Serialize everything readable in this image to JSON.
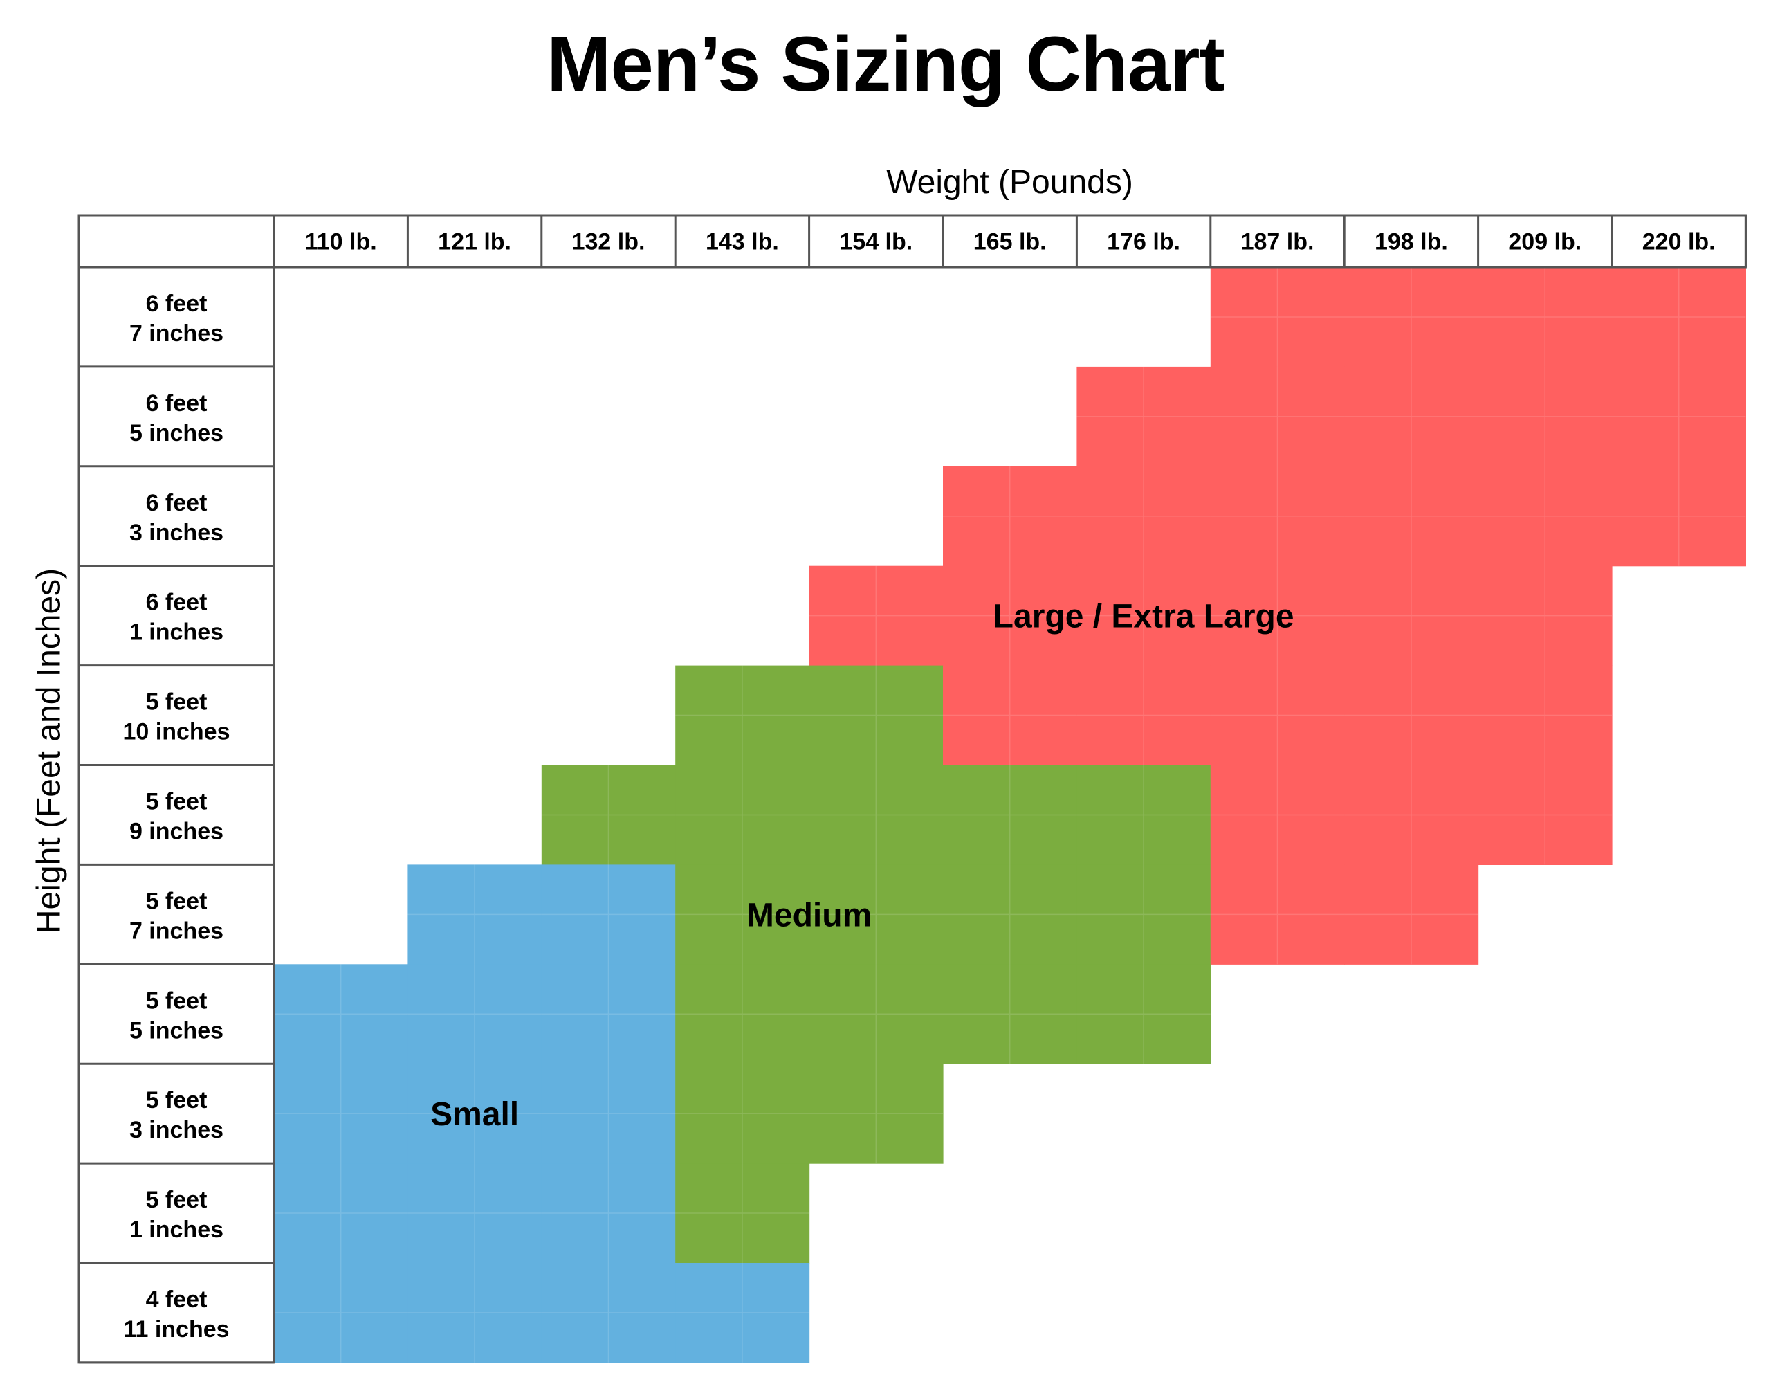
{
  "chart_data": {
    "type": "heatmap",
    "title": "Men’s Sizing Chart",
    "xlabel": "Weight (Pounds)",
    "ylabel": "Height (Feet and Inches)",
    "columns": [
      "110 lb.",
      "121 lb.",
      "132 lb.",
      "143 lb.",
      "154 lb.",
      "165 lb.",
      "176 lb.",
      "187 lb.",
      "198 lb.",
      "209 lb.",
      "220 lb."
    ],
    "rows": [
      {
        "feet": "6 feet",
        "inches": "7 inches"
      },
      {
        "feet": "6 feet",
        "inches": "5 inches"
      },
      {
        "feet": "6 feet",
        "inches": "3 inches"
      },
      {
        "feet": "6 feet",
        "inches": "1 inches"
      },
      {
        "feet": "5 feet",
        "inches": "10 inches"
      },
      {
        "feet": "5 feet",
        "inches": "9 inches"
      },
      {
        "feet": "5 feet",
        "inches": "7 inches"
      },
      {
        "feet": "5 feet",
        "inches": "5 inches"
      },
      {
        "feet": "5 feet",
        "inches": "3 inches"
      },
      {
        "feet": "5 feet",
        "inches": "1 inches"
      },
      {
        "feet": "4 feet",
        "inches": "11 inches"
      }
    ],
    "sizes": [
      {
        "key": "S",
        "name": "Small",
        "color": "#63b1df"
      },
      {
        "key": "M",
        "name": "Medium",
        "color": "#7bad3f"
      },
      {
        "key": "L",
        "name": "Large / Extra Large",
        "color": "#ff6060"
      }
    ],
    "grid": [
      "-------LLLL",
      "------LLLLL",
      "-----LLLLLL",
      "----LLLLLL-",
      "---MMLLLLL-",
      "--MMMMMLLL-",
      "-SSMMMMLL--",
      "SSSMMMM----",
      "SSSMM------",
      "SSSM-------",
      "SSSS-------"
    ]
  }
}
